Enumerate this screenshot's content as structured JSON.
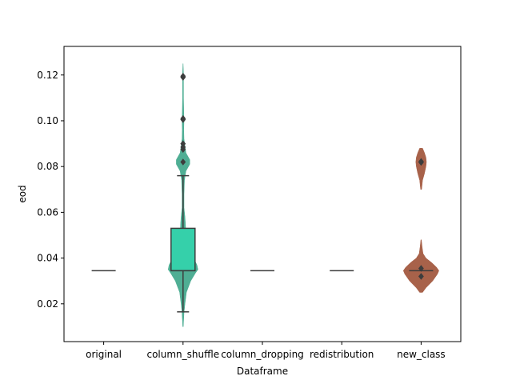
{
  "chart_data": {
    "type": "violin+box",
    "title": "",
    "xlabel": "Dataframe",
    "ylabel": "eod",
    "ylim": [
      0.0035,
      0.1325
    ],
    "yticks": [
      0.02,
      0.04,
      0.06,
      0.08,
      0.1,
      0.12
    ],
    "ytick_labels": [
      "0.02",
      "0.04",
      "0.06",
      "0.08",
      "0.10",
      "0.12"
    ],
    "categories": [
      "original",
      "column_shuffle",
      "column_dropping",
      "redistribution",
      "new_class"
    ],
    "violin_colors": [
      "#4fae94",
      "#4fae94",
      "#4fae94",
      "#4fae94",
      "#a8624a"
    ],
    "groups": [
      {
        "name": "original",
        "box": {
          "q1": 0.0345,
          "median": 0.0345,
          "q3": 0.0345,
          "whisker_low": 0.0345,
          "whisker_high": 0.0345
        },
        "box_color": "#2ecfa8",
        "outliers": [],
        "violin": []
      },
      {
        "name": "column_shuffle",
        "box": {
          "q1": 0.0345,
          "median": 0.0345,
          "q3": 0.053,
          "whisker_low": 0.0165,
          "whisker_high": 0.076
        },
        "box_color": "#35d0aa",
        "outliers": [
          0.082,
          0.0875,
          0.0885,
          0.09,
          0.1005,
          0.101,
          0.119,
          0.1195
        ],
        "violin": [
          [
            0.01,
            0.0005
          ],
          [
            0.016,
            0.002
          ],
          [
            0.02,
            0.004
          ],
          [
            0.025,
            0.007
          ],
          [
            0.03,
            0.016
          ],
          [
            0.0335,
            0.026
          ],
          [
            0.035,
            0.031
          ],
          [
            0.037,
            0.029
          ],
          [
            0.04,
            0.022
          ],
          [
            0.045,
            0.008
          ],
          [
            0.05,
            0.006
          ],
          [
            0.055,
            0.005
          ],
          [
            0.058,
            0.004
          ],
          [
            0.062,
            0.002
          ],
          [
            0.068,
            0.002
          ],
          [
            0.074,
            0.003
          ],
          [
            0.078,
            0.006
          ],
          [
            0.081,
            0.014
          ],
          [
            0.083,
            0.014
          ],
          [
            0.086,
            0.006
          ],
          [
            0.089,
            0.004
          ],
          [
            0.092,
            0.002
          ],
          [
            0.096,
            0.0015
          ],
          [
            0.1,
            0.002
          ],
          [
            0.104,
            0.0015
          ],
          [
            0.11,
            0.001
          ],
          [
            0.116,
            0.001
          ],
          [
            0.12,
            0.001
          ],
          [
            0.125,
            0.0002
          ]
        ]
      },
      {
        "name": "column_dropping",
        "box": {
          "q1": 0.0345,
          "median": 0.0345,
          "q3": 0.0345,
          "whisker_low": 0.0345,
          "whisker_high": 0.0345
        },
        "box_color": "#2ecfa8",
        "outliers": [],
        "violin": []
      },
      {
        "name": "redistribution",
        "box": {
          "q1": 0.0345,
          "median": 0.0345,
          "q3": 0.0345,
          "whisker_low": 0.0345,
          "whisker_high": 0.0345
        },
        "box_color": "#2ecfa8",
        "outliers": [],
        "violin": []
      },
      {
        "name": "new_class",
        "box": {
          "q1": 0.0345,
          "median": 0.0345,
          "q3": 0.0345,
          "whisker_low": 0.0345,
          "whisker_high": 0.0345
        },
        "box_color": "#a8624a",
        "outliers": [
          0.0355,
          0.032,
          0.0818,
          0.0822
        ],
        "violin": [
          [
            0.025,
            0.003
          ],
          [
            0.027,
            0.01
          ],
          [
            0.03,
            0.024
          ],
          [
            0.033,
            0.034
          ],
          [
            0.0345,
            0.037
          ],
          [
            0.036,
            0.032
          ],
          [
            0.038,
            0.022
          ],
          [
            0.04,
            0.01
          ],
          [
            0.042,
            0.004
          ],
          [
            0.045,
            0.002
          ],
          [
            0.048,
            0.0005
          ],
          [
            0.05,
            0.0
          ],
          [
            0.068,
            0.0
          ],
          [
            0.07,
            0.001
          ],
          [
            0.074,
            0.003
          ],
          [
            0.077,
            0.007
          ],
          [
            0.08,
            0.01
          ],
          [
            0.082,
            0.011
          ],
          [
            0.084,
            0.01
          ],
          [
            0.086,
            0.007
          ],
          [
            0.088,
            0.003
          ],
          [
            0.089,
            0.0
          ]
        ]
      }
    ],
    "grid": false,
    "legend": "none"
  }
}
